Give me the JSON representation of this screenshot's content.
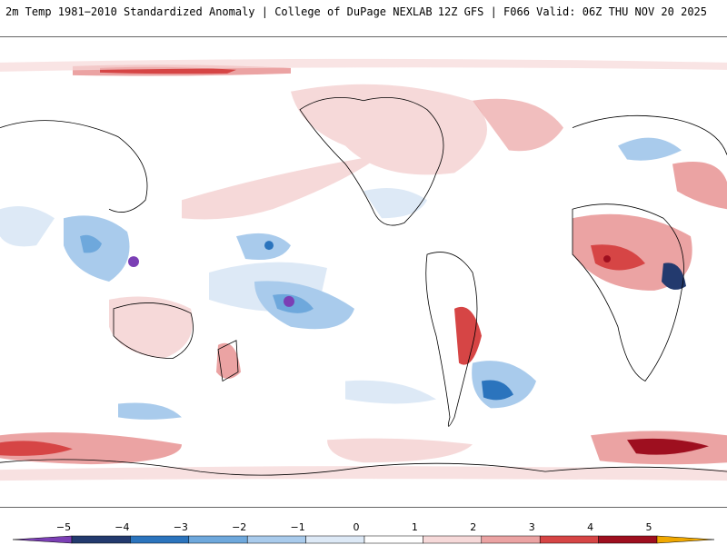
{
  "header": {
    "title_left": "2m Temp 1981−2010 Standardized Anomaly | College of DuPage NEXLAB",
    "title_right": "12Z GFS | F066 Valid: 06Z THU NOV 20 2025"
  },
  "map": {
    "projection": "cylindrical",
    "center_longitude": -150
  },
  "colorbar": {
    "tick_labels": [
      "−5",
      "−4",
      "−3",
      "−2",
      "−1",
      "0",
      "1",
      "2",
      "3",
      "4",
      "5"
    ],
    "colors": {
      "below_min": "#7b3fb5",
      "n5": "#233a6e",
      "n4": "#2b74bd",
      "n3": "#6ea8dc",
      "n2": "#a9cbec",
      "n1": "#dde9f6",
      "p0": "#ffffff",
      "p1": "#f6d9d9",
      "p2": "#eba3a3",
      "p3": "#d64545",
      "p4": "#9e0f1f",
      "above_max": "#f0a800"
    }
  }
}
